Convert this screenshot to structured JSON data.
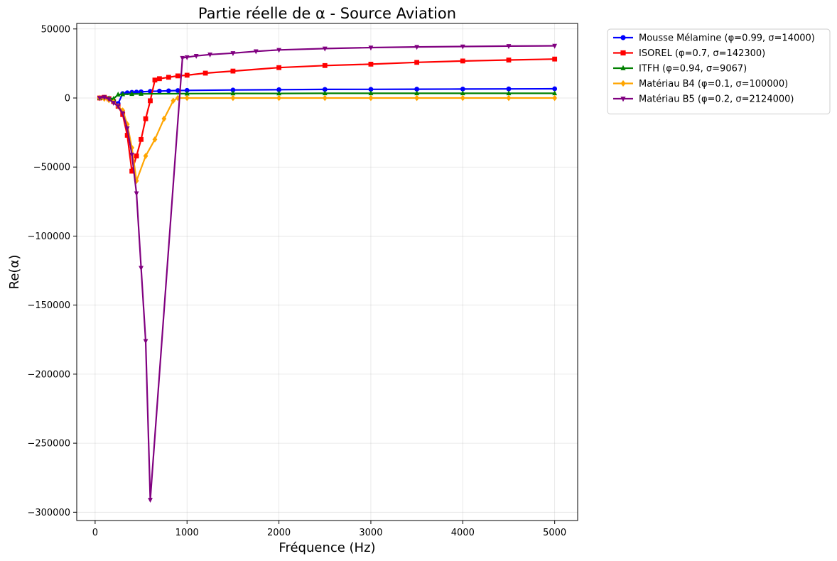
{
  "chart_data": {
    "type": "line",
    "title": "Partie réelle de α - Source Aviation",
    "xlabel": "Fréquence (Hz)",
    "ylabel": "Re(α)",
    "xlim": [
      -200,
      5250
    ],
    "ylim": [
      -306000,
      54000
    ],
    "xticks": [
      0,
      1000,
      2000,
      3000,
      4000,
      5000
    ],
    "xtick_labels": [
      "0",
      "1000",
      "2000",
      "3000",
      "4000",
      "5000"
    ],
    "yticks": [
      50000,
      0,
      -50000,
      -100000,
      -150000,
      -200000,
      -250000,
      -300000
    ],
    "ytick_labels": [
      "50000",
      "0",
      "−50000",
      "−100000",
      "−150000",
      "−200000",
      "−250000",
      "−300000"
    ],
    "grid": true,
    "legend_position": "outside-top-right",
    "series": [
      {
        "name": "Mousse Mélamine (φ=0.99, σ=14000)",
        "color": "#0000ff",
        "marker": "circle",
        "points": [
          [
            50,
            0
          ],
          [
            100,
            200
          ],
          [
            150,
            -500
          ],
          [
            200,
            -2000
          ],
          [
            250,
            -4000
          ],
          [
            300,
            3200
          ],
          [
            350,
            3800
          ],
          [
            400,
            4100
          ],
          [
            450,
            4300
          ],
          [
            500,
            4500
          ],
          [
            600,
            4800
          ],
          [
            700,
            5000
          ],
          [
            800,
            5200
          ],
          [
            900,
            5400
          ],
          [
            1000,
            5500
          ],
          [
            1500,
            5800
          ],
          [
            2000,
            6000
          ],
          [
            2500,
            6200
          ],
          [
            3000,
            6300
          ],
          [
            3500,
            6400
          ],
          [
            4000,
            6500
          ],
          [
            4500,
            6600
          ],
          [
            5000,
            6700
          ]
        ]
      },
      {
        "name": "ISOREL (φ=0.7, σ=142300)",
        "color": "#ff0000",
        "marker": "square",
        "points": [
          [
            50,
            0
          ],
          [
            100,
            500
          ],
          [
            150,
            -500
          ],
          [
            200,
            -2500
          ],
          [
            250,
            -6000
          ],
          [
            300,
            -12000
          ],
          [
            350,
            -27000
          ],
          [
            400,
            -53000
          ],
          [
            450,
            -42000
          ],
          [
            500,
            -30000
          ],
          [
            550,
            -15000
          ],
          [
            600,
            -2000
          ],
          [
            650,
            13000
          ],
          [
            700,
            14000
          ],
          [
            800,
            15000
          ],
          [
            900,
            16000
          ],
          [
            1000,
            16500
          ],
          [
            1200,
            18000
          ],
          [
            1500,
            19500
          ],
          [
            2000,
            22000
          ],
          [
            2500,
            23500
          ],
          [
            3000,
            24500
          ],
          [
            3500,
            25800
          ],
          [
            4000,
            26800
          ],
          [
            4500,
            27500
          ],
          [
            5000,
            28200
          ]
        ]
      },
      {
        "name": "ITFH (φ=0.94, σ=9067)",
        "color": "#008000",
        "marker": "triangle-up",
        "points": [
          [
            50,
            0
          ],
          [
            100,
            200
          ],
          [
            150,
            -200
          ],
          [
            200,
            -600
          ],
          [
            250,
            2500
          ],
          [
            300,
            2700
          ],
          [
            400,
            2900
          ],
          [
            500,
            3000
          ],
          [
            1000,
            3200
          ],
          [
            1500,
            3300
          ],
          [
            2000,
            3300
          ],
          [
            2500,
            3400
          ],
          [
            3000,
            3400
          ],
          [
            3500,
            3400
          ],
          [
            4000,
            3400
          ],
          [
            4500,
            3400
          ],
          [
            5000,
            3400
          ]
        ]
      },
      {
        "name": "Matériau B4 (φ=0.1, σ=100000)",
        "color": "#ffa500",
        "marker": "diamond",
        "points": [
          [
            50,
            0
          ],
          [
            100,
            -500
          ],
          [
            150,
            -1500
          ],
          [
            200,
            -3000
          ],
          [
            250,
            -6000
          ],
          [
            300,
            -9000
          ],
          [
            350,
            -19000
          ],
          [
            400,
            -36000
          ],
          [
            450,
            -60000
          ],
          [
            550,
            -42000
          ],
          [
            650,
            -30000
          ],
          [
            750,
            -15000
          ],
          [
            850,
            -2000
          ],
          [
            900,
            0
          ],
          [
            1000,
            0
          ],
          [
            1500,
            0
          ],
          [
            2000,
            0
          ],
          [
            2500,
            0
          ],
          [
            3000,
            0
          ],
          [
            3500,
            0
          ],
          [
            4000,
            0
          ],
          [
            4500,
            0
          ],
          [
            5000,
            0
          ]
        ]
      },
      {
        "name": "Matériau B5 (φ=0.2, σ=2124000)",
        "color": "#800080",
        "marker": "triangle-down",
        "points": [
          [
            50,
            0
          ],
          [
            100,
            500
          ],
          [
            150,
            -800
          ],
          [
            200,
            -3500
          ],
          [
            250,
            -6000
          ],
          [
            300,
            -11000
          ],
          [
            350,
            -22000
          ],
          [
            400,
            -41000
          ],
          [
            450,
            -69000
          ],
          [
            500,
            -123000
          ],
          [
            550,
            -176000
          ],
          [
            600,
            -291000
          ],
          [
            950,
            29000
          ],
          [
            1000,
            29500
          ],
          [
            1100,
            30500
          ],
          [
            1250,
            31500
          ],
          [
            1500,
            32500
          ],
          [
            1750,
            33800
          ],
          [
            2000,
            34800
          ],
          [
            2500,
            35800
          ],
          [
            3000,
            36500
          ],
          [
            3500,
            37000
          ],
          [
            4000,
            37300
          ],
          [
            4500,
            37600
          ],
          [
            5000,
            37800
          ]
        ]
      }
    ]
  }
}
